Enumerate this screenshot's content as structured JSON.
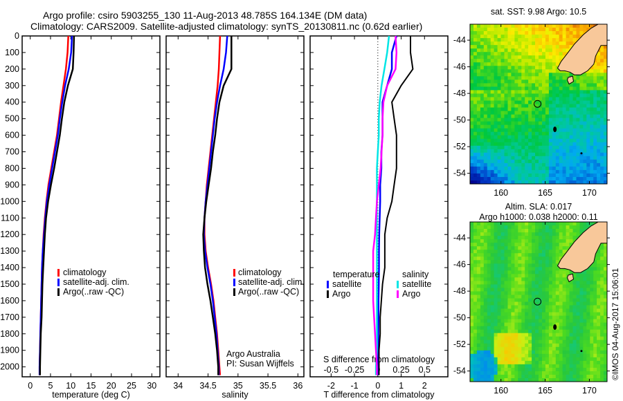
{
  "title": {
    "line1": "Argo profile: csiro 5903255_130 11-Aug-2013 48.785S 164.134E (DM data)",
    "line2": "Climatology: CARS2009. Satellite-adjusted climatology: synTS_20130811.nc (0.62d earlier)"
  },
  "colors": {
    "climatology": "#ff0000",
    "satellite": "#0000ff",
    "argo": "#000000",
    "sal_satellite": "#00e5e5",
    "sal_argo": "#ff00ff",
    "land": "#f8c89a"
  },
  "chart_data": [
    {
      "type": "line",
      "name": "temperature-profile",
      "xlabel": "temperature (deg C)",
      "ylabel": "",
      "xlim": [
        -2,
        32
      ],
      "ylim": [
        2060,
        0
      ],
      "xticks": [
        0,
        5,
        10,
        15,
        20,
        25,
        30
      ],
      "yticks": [
        0,
        100,
        200,
        300,
        400,
        500,
        600,
        700,
        800,
        900,
        1000,
        1100,
        1200,
        1300,
        1400,
        1500,
        1600,
        1700,
        1800,
        1900,
        2000
      ],
      "legend": [
        "climatology",
        "satellite-adj. clim.",
        "Argo(..raw -QC)"
      ],
      "legend_position": "center-right",
      "depth": [
        0,
        100,
        200,
        300,
        400,
        500,
        600,
        700,
        800,
        900,
        1000,
        1100,
        1200,
        1300,
        1400,
        1500,
        1600,
        1700,
        1800,
        1900,
        2000,
        2050
      ],
      "series": [
        {
          "name": "climatology",
          "values": [
            9.4,
            9.2,
            8.8,
            8.2,
            7.6,
            7.1,
            6.6,
            5.9,
            5.2,
            4.5,
            4.0,
            3.6,
            3.3,
            3.1,
            2.9,
            2.8,
            2.7,
            2.6,
            2.5,
            2.4,
            2.3,
            2.3
          ]
        },
        {
          "name": "satellite-adj. clim.",
          "values": [
            10.3,
            10.1,
            9.5,
            8.6,
            7.9,
            7.3,
            6.8,
            6.1,
            5.4,
            4.7,
            4.1,
            3.7,
            3.4,
            3.1,
            2.9,
            2.8,
            2.7,
            2.6,
            2.5,
            2.4,
            2.3,
            2.3
          ]
        },
        {
          "name": "Argo(..raw -QC)",
          "values": [
            10.8,
            10.7,
            10.5,
            9.3,
            8.4,
            7.8,
            7.3,
            6.6,
            5.9,
            5.1,
            4.4,
            3.9,
            3.6,
            3.4,
            3.2,
            3.0,
            2.9,
            2.8,
            2.6,
            2.5,
            2.4,
            2.4
          ]
        }
      ]
    },
    {
      "type": "line",
      "name": "salinity-profile",
      "xlabel": "salinity",
      "xlim": [
        33.8,
        36.1
      ],
      "ylim": [
        2060,
        0
      ],
      "xticks": [
        34,
        34.5,
        35,
        35.5,
        36
      ],
      "xticklabels": [
        "34",
        "34.5",
        "35",
        "35.5",
        "36"
      ],
      "legend": [
        "climatology",
        "satellite-adj. clim.",
        "Argo(..raw -QC)"
      ],
      "legend_position": "center-right",
      "annotation": [
        "Argo Australia",
        "PI: Susan Wijffels"
      ],
      "depth": [
        0,
        100,
        200,
        300,
        400,
        500,
        600,
        700,
        800,
        900,
        1000,
        1100,
        1200,
        1300,
        1400,
        1500,
        1600,
        1700,
        1800,
        1900,
        2000,
        2050
      ],
      "series": [
        {
          "name": "climatology",
          "values": [
            34.7,
            34.69,
            34.68,
            34.66,
            34.63,
            34.6,
            34.57,
            34.54,
            34.51,
            34.48,
            34.46,
            34.44,
            34.44,
            34.46,
            34.5,
            34.55,
            34.59,
            34.62,
            34.65,
            34.67,
            34.69,
            34.7
          ]
        },
        {
          "name": "satellite-adj. clim.",
          "values": [
            34.82,
            34.8,
            34.76,
            34.7,
            34.65,
            34.61,
            34.58,
            34.55,
            34.52,
            34.49,
            34.46,
            34.44,
            34.43,
            34.45,
            34.49,
            34.54,
            34.58,
            34.61,
            34.64,
            34.66,
            34.68,
            34.68
          ]
        },
        {
          "name": "Argo(..raw -QC)",
          "values": [
            34.89,
            34.89,
            34.89,
            34.76,
            34.69,
            34.65,
            34.62,
            34.58,
            34.55,
            34.51,
            34.47,
            34.44,
            34.42,
            34.43,
            34.45,
            34.49,
            34.54,
            34.58,
            34.62,
            34.65,
            34.67,
            34.67
          ]
        }
      ]
    },
    {
      "type": "line",
      "name": "difference-profile",
      "xlabel": "T difference from climatology",
      "xlabel_top": "S difference from climatology",
      "xlim": [
        -2.9,
        3.0
      ],
      "ylim": [
        2060,
        0
      ],
      "xticks": [
        -2,
        -1,
        0,
        1,
        2
      ],
      "s_xticks": [
        -0.5,
        -0.25,
        0,
        0.25,
        0.5
      ],
      "s_xticklabels": [
        "-0.5",
        "-0.25",
        "0",
        "0.25",
        "0.5"
      ],
      "legend_left_title": "temperature",
      "legend_right_title": "salinity",
      "legend_left": [
        "satellite",
        "Argo"
      ],
      "legend_right": [
        "satellite",
        "Argo"
      ],
      "legend_position": "lower-center",
      "depth": [
        0,
        100,
        200,
        300,
        400,
        500,
        600,
        700,
        800,
        900,
        1000,
        1100,
        1200,
        1300,
        1400,
        1500,
        1600,
        1700,
        1800,
        1900,
        2000,
        2050
      ],
      "series": [
        {
          "name": "T satellite",
          "axis": "T",
          "values": [
            0.8,
            0.6,
            0.6,
            0.4,
            0.2,
            0.2,
            0.2,
            0.15,
            0.15,
            0.1,
            0.1,
            0.08,
            0.06,
            0.05,
            0.05,
            0.04,
            0.03,
            0.03,
            0.02,
            0.02,
            0.0,
            0.0
          ]
        },
        {
          "name": "T Argo",
          "axis": "T",
          "values": [
            1.4,
            1.4,
            1.5,
            1.0,
            0.6,
            0.7,
            0.8,
            0.8,
            0.8,
            0.7,
            0.6,
            0.4,
            0.3,
            0.3,
            0.3,
            0.2,
            0.15,
            0.1,
            0.1,
            0.05,
            0.05,
            0.05
          ]
        },
        {
          "name": "S satellite",
          "axis": "S",
          "values": [
            0.12,
            0.1,
            0.07,
            0.04,
            0.02,
            0.01,
            0.01,
            0.0,
            -0.01,
            -0.01,
            -0.01,
            -0.01,
            -0.01,
            -0.01,
            -0.01,
            -0.01,
            -0.01,
            -0.01,
            -0.01,
            -0.01,
            -0.02,
            -0.02
          ]
        },
        {
          "name": "S Argo",
          "axis": "S",
          "values": [
            0.19,
            0.2,
            0.19,
            0.1,
            0.06,
            0.05,
            0.05,
            0.04,
            0.03,
            0.01,
            -0.01,
            -0.02,
            -0.03,
            -0.05,
            -0.05,
            -0.05,
            -0.05,
            -0.04,
            -0.03,
            -0.02,
            -0.01,
            -0.01
          ]
        }
      ]
    },
    {
      "type": "heatmap",
      "name": "sst-map",
      "title": "sat. SST: 9.98 Argo: 10.5",
      "xlim": [
        156.5,
        172
      ],
      "ylim": [
        -54.8,
        -42.8
      ],
      "xticks": [
        160,
        165,
        170
      ],
      "yticks": [
        -44,
        -46,
        -48,
        -50,
        -52,
        -54
      ],
      "marker": {
        "lon": 164.134,
        "lat": -48.785
      }
    },
    {
      "type": "heatmap",
      "name": "sla-map",
      "title_line1": "Altim. SLA: 0.017",
      "title_line2": "Argo h1000: 0.038 h2000: 0.11",
      "xlim": [
        156.5,
        172
      ],
      "ylim": [
        -54.8,
        -42.8
      ],
      "xticks": [
        160,
        165,
        170
      ],
      "yticks": [
        -44,
        -46,
        -48,
        -50,
        -52,
        -54
      ],
      "marker": {
        "lon": 164.134,
        "lat": -48.785
      },
      "side_label": "©IMOS 04-Aug-2017 15:06:01"
    }
  ]
}
